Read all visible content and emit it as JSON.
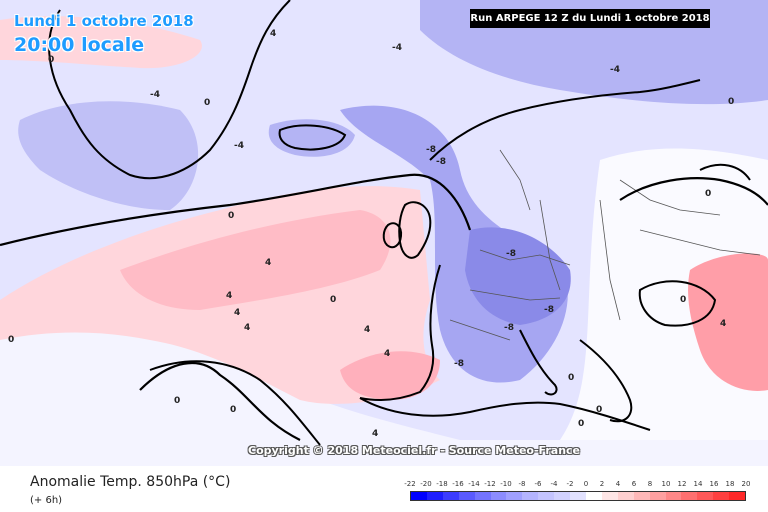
{
  "header": {
    "date_line": "Lundi 1 octobre 2018",
    "time_line": "20:00 locale",
    "run_info": "Run ARPEGE 12 Z du Lundi 1 octobre 2018"
  },
  "copyright": "Copyright © 2018 Meteociel.fr - Source Meteo-France",
  "footer": {
    "title": "Anomalie Temp. 850hPa (°C)",
    "step": "(+ 6h)"
  },
  "legend": {
    "ticks": [
      "-22",
      "-20",
      "-18",
      "-16",
      "-14",
      "-12",
      "-10",
      "-8",
      "-6",
      "-4",
      "-2",
      "0",
      "2",
      "4",
      "6",
      "8",
      "10",
      "12",
      "14",
      "16",
      "18",
      "20"
    ],
    "colors": [
      "#0000ff",
      "#1e1eff",
      "#3c3cff",
      "#5a5aff",
      "#7373ff",
      "#8c8cff",
      "#a0a0ff",
      "#b4b4ff",
      "#c4c4ff",
      "#d2d2ff",
      "#e2e2ff",
      "#ffffff",
      "#ffe6e6",
      "#ffd0d0",
      "#ffb8b8",
      "#ffa0a0",
      "#ff8888",
      "#ff7070",
      "#ff5858",
      "#ff4040",
      "#ff2828"
    ]
  },
  "contour_labels": {
    "zero": "0",
    "four": "4",
    "minus_four": "-4",
    "minus_eight": "-8"
  },
  "colors": {
    "land_base": "#e4e4ff",
    "warm_zone": "#ffd6dc",
    "cold_zone": "#a6a6f2"
  }
}
